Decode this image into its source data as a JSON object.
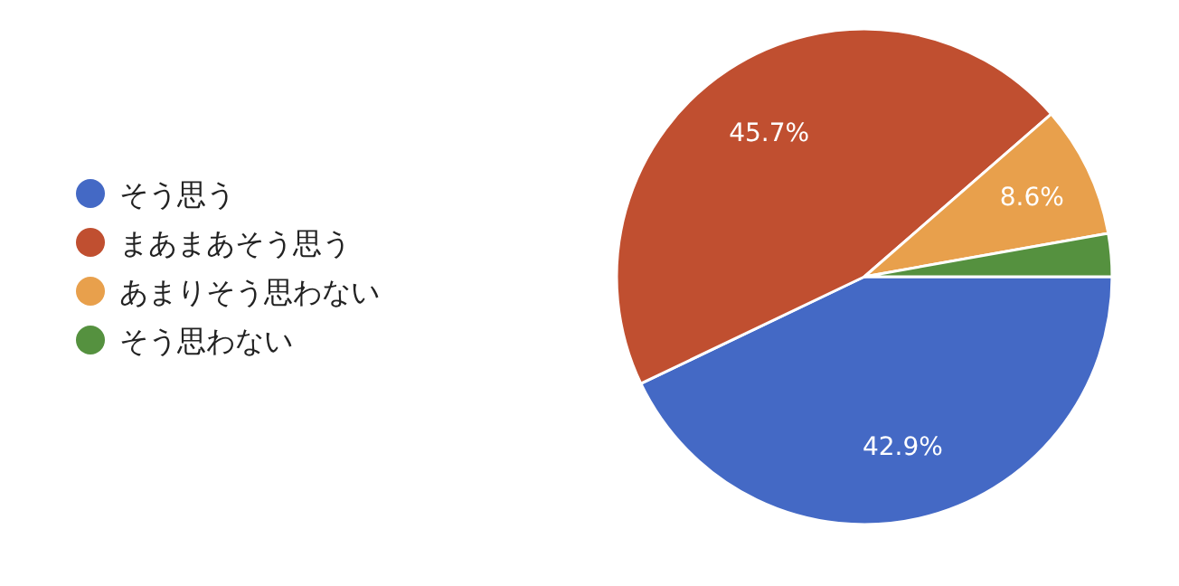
{
  "chart_data": {
    "type": "pie",
    "categories": [
      "そう思う",
      "まあまあそう思う",
      "あまりそう思わない",
      "そう思わない"
    ],
    "values": [
      42.9,
      45.7,
      8.6,
      2.8
    ],
    "colors": [
      "#4469c5",
      "#c04f30",
      "#e8a04c",
      "#55913f"
    ],
    "value_labels": [
      "42.9%",
      "45.7%",
      "8.6%",
      null
    ],
    "legend": "left"
  }
}
